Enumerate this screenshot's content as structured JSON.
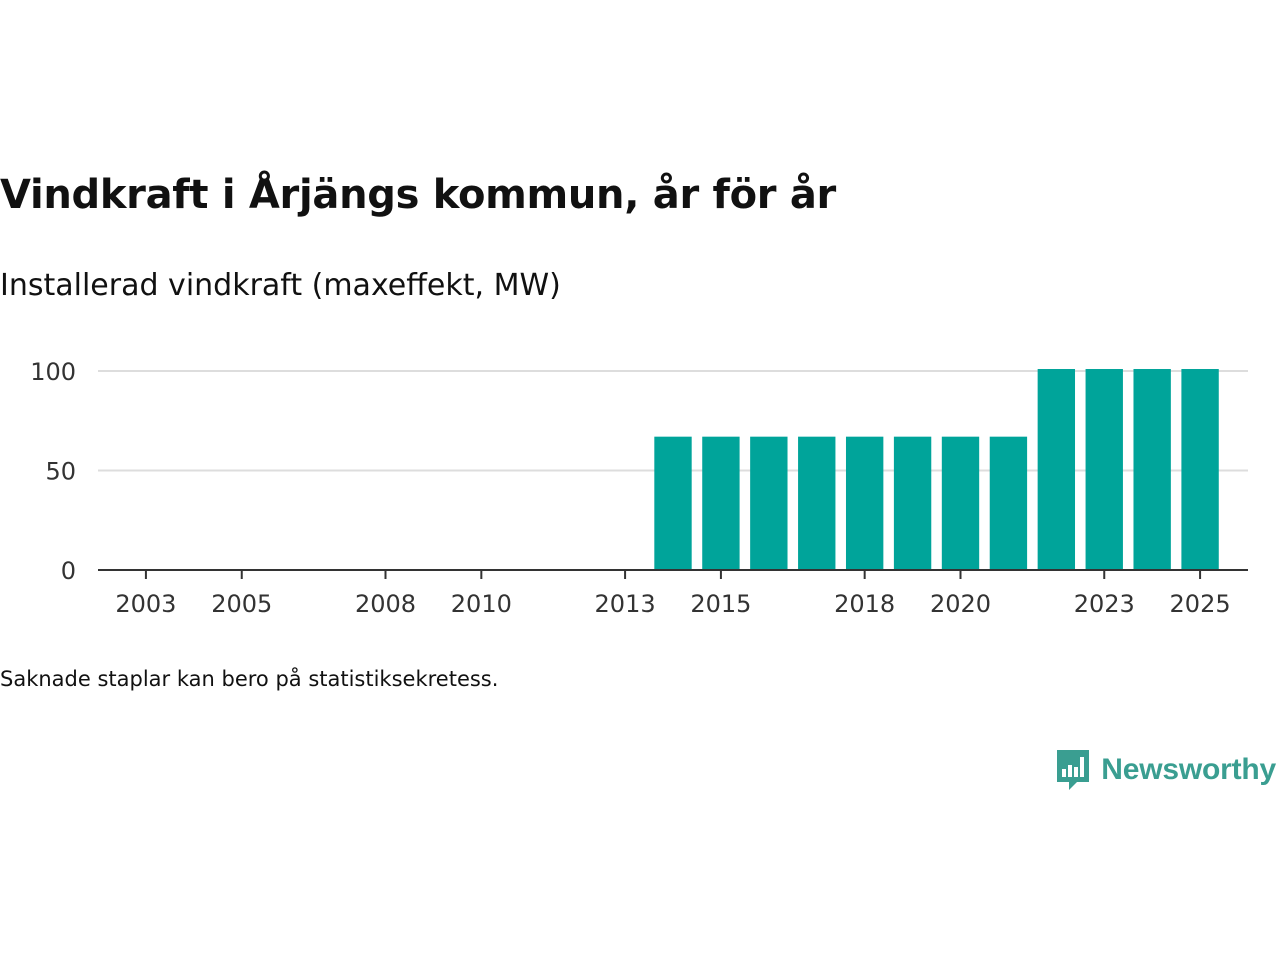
{
  "title": "Vindkraft i Årjängs kommun, år för år",
  "subtitle": "Installerad vindkraft (maxeffekt, MW)",
  "footnote": "Saknade staplar kan bero på statistiksekretess.",
  "brand": {
    "name": "Newsworthy",
    "color": "#3a9e91",
    "icon": "newsworthy-logo-icon"
  },
  "colors": {
    "bar": "#00a49a",
    "grid": "#dddddd",
    "axis": "#333333",
    "text": "#333333"
  },
  "chart_data": {
    "type": "bar",
    "title": "Vindkraft i Årjängs kommun, år för år",
    "subtitle": "Installerad vindkraft (maxeffekt, MW)",
    "xlabel": "",
    "ylabel": "",
    "x_domain": [
      2002,
      2026
    ],
    "ylim": [
      0,
      100
    ],
    "yticks": [
      0,
      50,
      100
    ],
    "xticks": [
      2003,
      2005,
      2008,
      2010,
      2013,
      2015,
      2018,
      2020,
      2023,
      2025
    ],
    "grid": true,
    "categories": [
      2014,
      2015,
      2016,
      2017,
      2018,
      2019,
      2020,
      2021,
      2022,
      2023,
      2024,
      2025
    ],
    "values": [
      67,
      67,
      67,
      67,
      67,
      67,
      67,
      67,
      101,
      101,
      101,
      101
    ]
  }
}
